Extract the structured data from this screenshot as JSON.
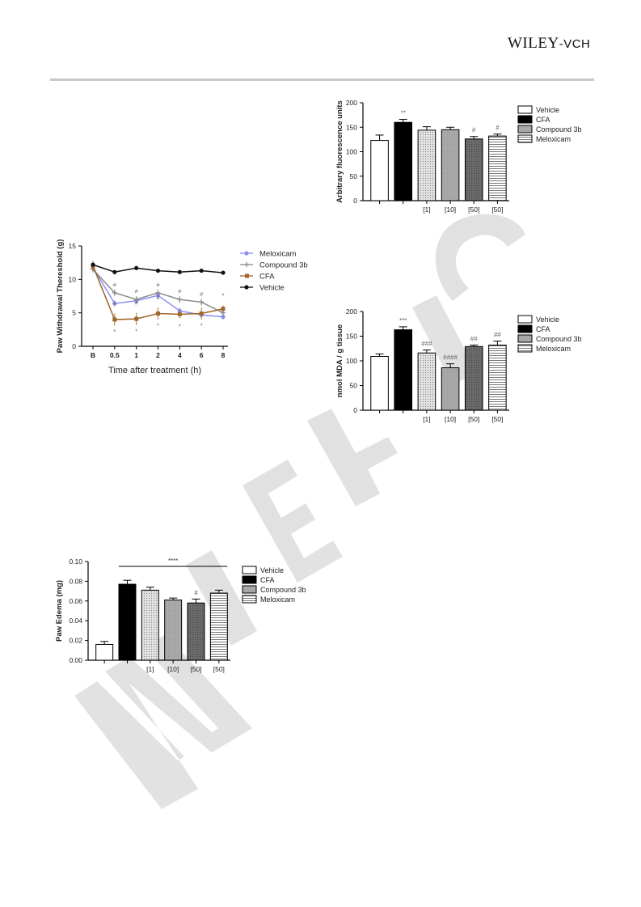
{
  "header": {
    "logo_main": "WILEY",
    "logo_suffix": "-VCH"
  },
  "watermark": {
    "text": "WILEY-VCH"
  },
  "chart_data": [
    {
      "id": "fluorescence",
      "type": "bar",
      "ylabel": "Arbitrary fluorescence units",
      "ylim": [
        0,
        200
      ],
      "yticks": [
        "0",
        "50",
        "100",
        "150",
        "200"
      ],
      "categories": [
        "",
        "",
        "[1]",
        "[10]",
        "[50]",
        "[50]"
      ],
      "values": [
        123,
        160,
        144,
        145,
        126,
        132
      ],
      "errors": [
        11,
        6,
        7,
        5,
        5,
        4
      ],
      "patterns": [
        "white",
        "black",
        "dots",
        "gray",
        "dark",
        "hlines"
      ],
      "annotations": [
        "",
        "**",
        "",
        "",
        "#",
        "#"
      ],
      "legend": [
        "Vehicle",
        "CFA",
        "Compound 3b",
        "Meloxicam"
      ],
      "legend_patterns": [
        "white",
        "black",
        "gray",
        "hlines"
      ]
    },
    {
      "id": "withdrawal",
      "type": "line",
      "ylabel": "Paw Withdrawal Thereshold (g)",
      "xlabel": "Time after treatment (h)",
      "categories": [
        "B",
        "0.5",
        "1",
        "2",
        "4",
        "6",
        "8"
      ],
      "ylim": [
        0,
        15
      ],
      "yticks": [
        "0",
        "5",
        "10",
        "15"
      ],
      "series": [
        {
          "name": "Meloxicam",
          "color": "#8c8ff0",
          "marker": "circle",
          "values": [
            11.8,
            6.4,
            6.8,
            7.6,
            5.3,
            4.7,
            4.4
          ],
          "errors": [
            0.5,
            0.5,
            0.5,
            0.5,
            0.5,
            0.5,
            0.4
          ]
        },
        {
          "name": "Compound 3b",
          "color": "#8a8a8a",
          "marker": "cross",
          "values": [
            11.5,
            8.0,
            7.0,
            8.0,
            7.0,
            6.6,
            5.0
          ],
          "errors": [
            0.5,
            0.5,
            0.5,
            0.5,
            0.5,
            0.5,
            0.5
          ]
        },
        {
          "name": "CFA",
          "color": "#a0652a",
          "marker": "square",
          "values": [
            12.0,
            4.0,
            4.1,
            4.9,
            4.8,
            4.9,
            5.6
          ],
          "errors": [
            0.8,
            0.9,
            0.9,
            0.9,
            0.6,
            0.9,
            0.5
          ]
        },
        {
          "name": "Vehicle",
          "color": "#111111",
          "marker": "circle",
          "values": [
            12.2,
            11.1,
            11.7,
            11.3,
            11.1,
            11.3,
            11.0
          ],
          "errors": [
            0.3,
            0.2,
            0.2,
            0.2,
            0.2,
            0.3,
            0.2
          ]
        }
      ],
      "annotations_hash": [
        "",
        "#",
        "#",
        "#",
        "#",
        "#",
        ""
      ],
      "annotations_hash2": [
        "",
        "#",
        "#",
        "#",
        "",
        "",
        ""
      ],
      "annotations_star": [
        "",
        "*",
        "*",
        "*",
        "*",
        "*",
        "*"
      ]
    },
    {
      "id": "mda",
      "type": "bar",
      "ylabel": "nmol MDA / g tissue",
      "ylim": [
        0,
        200
      ],
      "yticks": [
        "0",
        "50",
        "100",
        "150",
        "200"
      ],
      "categories": [
        "",
        "",
        "[1]",
        "[10]",
        "[50]",
        "[50]"
      ],
      "values": [
        109,
        163,
        116,
        86,
        129,
        132
      ],
      "errors": [
        5,
        6,
        6,
        8,
        3,
        8
      ],
      "patterns": [
        "white",
        "black",
        "dots",
        "gray",
        "dark",
        "hlines"
      ],
      "annotations": [
        "",
        "***",
        "###",
        "####",
        "##",
        "##"
      ],
      "legend": [
        "Vehicle",
        "CFA",
        "Compound 3b",
        "Meloxicam"
      ],
      "legend_patterns": [
        "white",
        "black",
        "gray",
        "hlines"
      ]
    },
    {
      "id": "edema",
      "type": "bar",
      "ylabel": "Paw Edema (mg)",
      "ylim": [
        0,
        0.1
      ],
      "yticks": [
        "0.00",
        "0.02",
        "0.04",
        "0.06",
        "0.08",
        "0.10"
      ],
      "categories": [
        "",
        "",
        "[1]",
        "[10]",
        "[50]",
        "[50]"
      ],
      "values": [
        0.016,
        0.077,
        0.071,
        0.061,
        0.058,
        0.068
      ],
      "errors": [
        0.003,
        0.004,
        0.003,
        0.002,
        0.004,
        0.003
      ],
      "patterns": [
        "white",
        "black",
        "dots",
        "gray",
        "dark",
        "hlines"
      ],
      "annotations": [
        "",
        "",
        "",
        "",
        "#",
        ""
      ],
      "bracket_label": "****",
      "legend": [
        "Vehicle",
        "CFA",
        "Compound 3b",
        "Meloxicam"
      ],
      "legend_patterns": [
        "white",
        "black",
        "gray",
        "hlines"
      ]
    }
  ]
}
